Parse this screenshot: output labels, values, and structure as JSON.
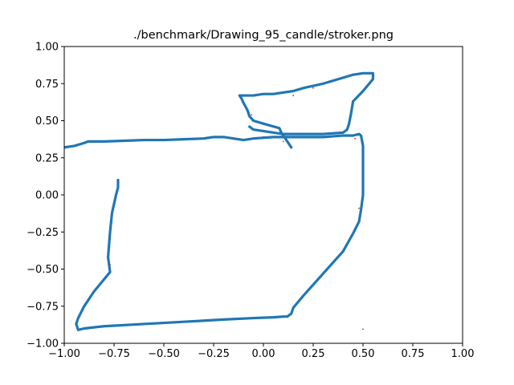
{
  "chart_data": {
    "type": "line",
    "title": "./benchmark/Drawing_95_candle/stroker.png",
    "xlabel": "",
    "ylabel": "",
    "xlim": [
      -1.0,
      1.0
    ],
    "ylim": [
      -1.0,
      1.0
    ],
    "xticks": [
      "−1.00",
      "−0.75",
      "−0.50",
      "−0.25",
      "0.00",
      "0.25",
      "0.50",
      "0.75",
      "1.00"
    ],
    "yticks": [
      "−1.00",
      "−0.75",
      "−0.50",
      "−0.25",
      "0.00",
      "0.25",
      "0.50",
      "0.75",
      "1.00"
    ],
    "grid": false,
    "series": [
      {
        "color": "#1f77b4",
        "x": [
          -1.0,
          -0.95,
          -0.9,
          -0.88,
          -0.8,
          -0.7,
          -0.6,
          -0.5,
          -0.4,
          -0.3,
          -0.25,
          -0.2,
          -0.15,
          -0.1,
          -0.05,
          0.0,
          0.05,
          0.1,
          0.15,
          0.2,
          0.25,
          0.3,
          0.35,
          0.4,
          0.45,
          0.48,
          0.49,
          0.5,
          0.5,
          0.49,
          0.48,
          0.45,
          0.4,
          0.3,
          0.2,
          0.15,
          0.14,
          0.12,
          0.1,
          0.05,
          -0.05,
          -0.2,
          -0.4,
          -0.6,
          -0.8,
          -0.9,
          -0.93,
          -0.94,
          -0.93,
          -0.9,
          -0.85,
          -0.77,
          -0.78,
          -0.77,
          -0.76,
          -0.74,
          -0.73,
          -0.73
        ],
        "y": [
          0.32,
          0.33,
          0.35,
          0.36,
          0.36,
          0.365,
          0.37,
          0.37,
          0.375,
          0.38,
          0.39,
          0.39,
          0.38,
          0.37,
          0.38,
          0.385,
          0.39,
          0.39,
          0.39,
          0.39,
          0.39,
          0.39,
          0.395,
          0.4,
          0.4,
          0.41,
          0.4,
          0.33,
          0.0,
          -0.1,
          -0.18,
          -0.26,
          -0.38,
          -0.53,
          -0.68,
          -0.76,
          -0.8,
          -0.82,
          -0.82,
          -0.825,
          -0.83,
          -0.84,
          -0.855,
          -0.87,
          -0.885,
          -0.9,
          -0.91,
          -0.87,
          -0.83,
          -0.75,
          -0.65,
          -0.52,
          -0.42,
          -0.25,
          -0.12,
          0.0,
          0.05,
          0.1
        ]
      },
      {
        "color": "#1f77b4",
        "x": [
          0.14,
          0.13,
          0.12,
          0.11,
          0.1,
          0.09,
          0.08,
          0.0,
          -0.05,
          -0.07,
          -0.08,
          -0.1,
          -0.11,
          -0.12,
          -0.1,
          -0.05,
          0.0,
          0.05,
          0.1,
          0.15,
          0.2,
          0.25,
          0.3,
          0.35,
          0.4,
          0.45,
          0.5,
          0.55,
          0.55,
          0.5,
          0.45,
          0.44,
          0.43,
          0.42,
          0.4,
          0.3,
          0.2,
          0.15,
          0.1,
          0.05,
          0.0,
          -0.05,
          -0.07
        ],
        "y": [
          0.32,
          0.34,
          0.36,
          0.38,
          0.4,
          0.42,
          0.45,
          0.48,
          0.5,
          0.53,
          0.57,
          0.62,
          0.65,
          0.67,
          0.67,
          0.67,
          0.68,
          0.68,
          0.69,
          0.7,
          0.72,
          0.735,
          0.75,
          0.77,
          0.79,
          0.81,
          0.82,
          0.82,
          0.78,
          0.7,
          0.63,
          0.55,
          0.48,
          0.44,
          0.42,
          0.41,
          0.41,
          0.41,
          0.41,
          0.42,
          0.43,
          0.44,
          0.46
        ]
      }
    ],
    "markers": {
      "color": "#d62728",
      "x": [
        0.5,
        0.46,
        0.1,
        0.07,
        -0.06,
        0.25,
        0.15,
        -0.77,
        0.48,
        -0.15,
        0.0
      ],
      "y": [
        -0.905,
        0.38,
        0.36,
        0.45,
        0.54,
        0.72,
        0.67,
        -0.47,
        -0.09,
        0.38,
        0.39
      ]
    }
  }
}
